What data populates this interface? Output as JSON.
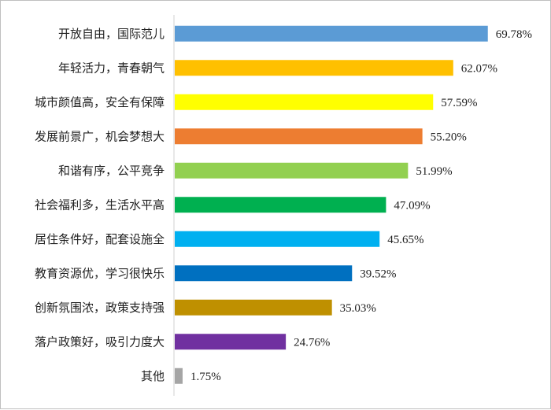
{
  "chart_data": {
    "type": "bar",
    "orientation": "horizontal",
    "categories": [
      "开放自由，国际范儿",
      "年轻活力，青春朝气",
      "城市颜值高，安全有保障",
      "发展前景广，机会梦想大",
      "和谐有序，公平竞争",
      "社会福利多，生活水平高",
      "居住条件好，配套设施全",
      "教育资源优，学习很快乐",
      "创新氛围浓，政策支持强",
      "落户政策好，吸引力度大",
      "其他"
    ],
    "values": [
      69.78,
      62.07,
      57.59,
      55.2,
      51.99,
      47.09,
      45.65,
      39.52,
      35.03,
      24.76,
      1.75
    ],
    "value_labels": [
      "69.78%",
      "62.07%",
      "57.59%",
      "55.20%",
      "51.99%",
      "47.09%",
      "45.65%",
      "39.52%",
      "35.03%",
      "24.76%",
      "1.75%"
    ],
    "colors": [
      "#5b9bd5",
      "#ffc000",
      "#ffff00",
      "#ed7d31",
      "#92d050",
      "#00b050",
      "#00b0f0",
      "#0070c0",
      "#bf9000",
      "#7030a0",
      "#a5a5a5"
    ],
    "xlim": [
      0,
      100
    ],
    "title": "",
    "xlabel": "",
    "ylabel": "",
    "grid": false,
    "legend": "none"
  }
}
